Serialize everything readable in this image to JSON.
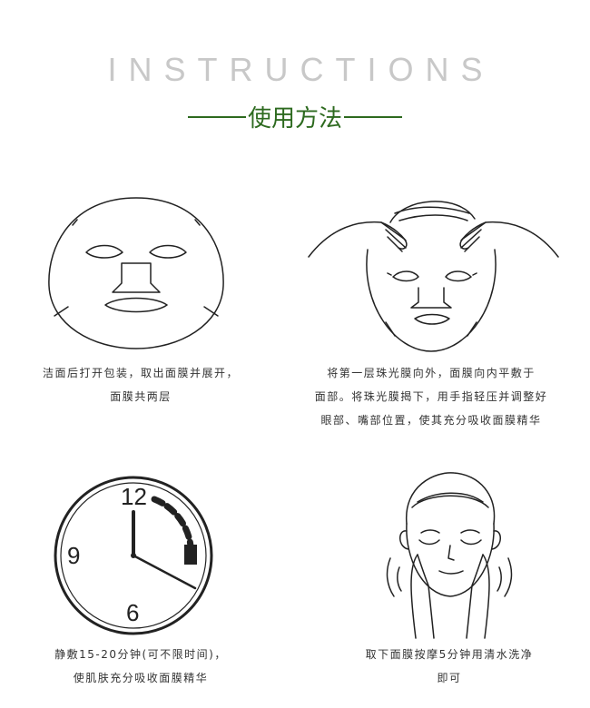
{
  "header": {
    "title_en": "INSTRUCTIONS",
    "title_cn": "使用方法"
  },
  "steps": [
    {
      "lines": [
        "洁面后打开包装，取出面膜并展开，",
        "面膜共两层"
      ],
      "icon": "face-mask-icon"
    },
    {
      "lines": [
        "将第一层珠光膜向外，面膜向内平敷于",
        "面部。将珠光膜揭下，用手指轻压并调整好",
        "眼部、嘴部位置，使其充分吸收面膜精华"
      ],
      "icon": "apply-mask-hands-icon"
    },
    {
      "lines": [
        "静敷15-20分钟(可不限时间)，",
        "使肌肤充分吸收面膜精华"
      ],
      "icon": "clock-icon"
    },
    {
      "lines": [
        "取下面膜按摩5分钟用清水洗净",
        "即可"
      ],
      "icon": "massage-face-icon"
    }
  ],
  "clock": {
    "numerals": [
      "12",
      "9",
      "6"
    ]
  },
  "colors": {
    "accent": "#2d6a1f",
    "title_grey": "#c8c8c8",
    "line": "#222222"
  }
}
